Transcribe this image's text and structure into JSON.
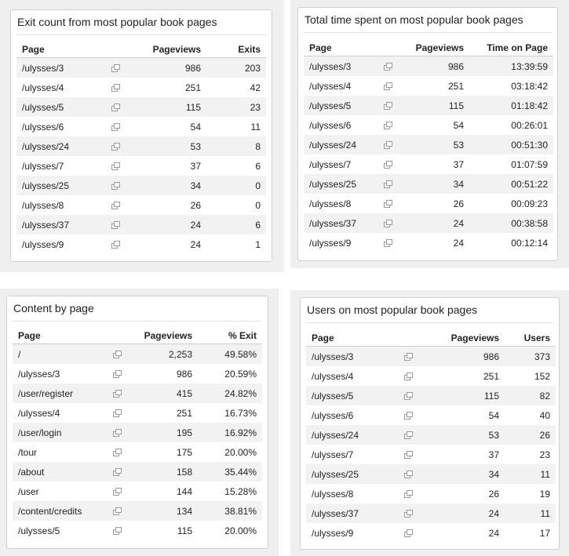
{
  "panels": [
    {
      "title": "Exit count from most popular book pages",
      "columns": [
        "Page",
        "Pageviews",
        "Exits"
      ],
      "rows": [
        [
          "/ulysses/3",
          "986",
          "203"
        ],
        [
          "/ulysses/4",
          "251",
          "42"
        ],
        [
          "/ulysses/5",
          "115",
          "23"
        ],
        [
          "/ulysses/6",
          "54",
          "11"
        ],
        [
          "/ulysses/24",
          "53",
          "8"
        ],
        [
          "/ulysses/7",
          "37",
          "6"
        ],
        [
          "/ulysses/25",
          "34",
          "0"
        ],
        [
          "/ulysses/8",
          "26",
          "0"
        ],
        [
          "/ulysses/37",
          "24",
          "6"
        ],
        [
          "/ulysses/9",
          "24",
          "1"
        ]
      ]
    },
    {
      "title": "Total time spent on most popular book pages",
      "columns": [
        "Page",
        "Pageviews",
        "Time on Page"
      ],
      "rows": [
        [
          "/ulysses/3",
          "986",
          "13:39:59"
        ],
        [
          "/ulysses/4",
          "251",
          "03:18:42"
        ],
        [
          "/ulysses/5",
          "115",
          "01:18:42"
        ],
        [
          "/ulysses/6",
          "54",
          "00:26:01"
        ],
        [
          "/ulysses/24",
          "53",
          "00:51:30"
        ],
        [
          "/ulysses/7",
          "37",
          "01:07:59"
        ],
        [
          "/ulysses/25",
          "34",
          "00:51:22"
        ],
        [
          "/ulysses/8",
          "26",
          "00:09:23"
        ],
        [
          "/ulysses/37",
          "24",
          "00:38:58"
        ],
        [
          "/ulysses/9",
          "24",
          "00:12:14"
        ]
      ]
    },
    {
      "title": "Content by page",
      "columns": [
        "Page",
        "Pageviews",
        "% Exit"
      ],
      "rows": [
        [
          "/",
          "2,253",
          "49.58%"
        ],
        [
          "/ulysses/3",
          "986",
          "20.59%"
        ],
        [
          "/user/register",
          "415",
          "24.82%"
        ],
        [
          "/ulysses/4",
          "251",
          "16.73%"
        ],
        [
          "/user/login",
          "195",
          "16.92%"
        ],
        [
          "/tour",
          "175",
          "20.00%"
        ],
        [
          "/about",
          "158",
          "35.44%"
        ],
        [
          "/user",
          "144",
          "15.28%"
        ],
        [
          "/content/credits",
          "134",
          "38.81%"
        ],
        [
          "/ulysses/5",
          "115",
          "20.00%"
        ]
      ]
    },
    {
      "title": "Users on most popular book pages",
      "columns": [
        "Page",
        "Pageviews",
        "Users"
      ],
      "rows": [
        [
          "/ulysses/3",
          "986",
          "373"
        ],
        [
          "/ulysses/4",
          "251",
          "152"
        ],
        [
          "/ulysses/5",
          "115",
          "82"
        ],
        [
          "/ulysses/6",
          "54",
          "40"
        ],
        [
          "/ulysses/24",
          "53",
          "26"
        ],
        [
          "/ulysses/7",
          "37",
          "23"
        ],
        [
          "/ulysses/25",
          "34",
          "11"
        ],
        [
          "/ulysses/8",
          "26",
          "19"
        ],
        [
          "/ulysses/37",
          "24",
          "11"
        ],
        [
          "/ulysses/9",
          "24",
          "17"
        ]
      ]
    }
  ]
}
